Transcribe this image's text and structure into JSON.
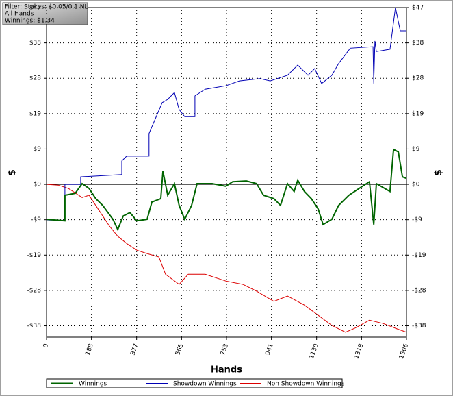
{
  "chart_data": {
    "type": "line",
    "filter_lines": [
      "Filter: Stakes: $0.05/0.1 NL",
      "All Hands",
      "Winnings: $1.34"
    ],
    "xlabel": "Hands",
    "ylabel": "$",
    "y2label": "$",
    "xlim": [
      0,
      1506
    ],
    "xticks": [
      0,
      188,
      377,
      565,
      753,
      941,
      1130,
      1318,
      1506
    ],
    "ylim": [
      -40.6,
      47
    ],
    "yticks": [
      {
        "value": -37.6,
        "label": "-$38"
      },
      {
        "value": -28.2,
        "label": "-$28"
      },
      {
        "value": -18.8,
        "label": "-$19"
      },
      {
        "value": -9.4,
        "label": "-$9"
      },
      {
        "value": 0,
        "label": "$0"
      },
      {
        "value": 9.4,
        "label": "$9"
      },
      {
        "value": 18.8,
        "label": "$19"
      },
      {
        "value": 28.2,
        "label": "$28"
      },
      {
        "value": 37.6,
        "label": "$38"
      },
      {
        "value": 47,
        "label": "$47"
      }
    ],
    "grid": true,
    "series": [
      {
        "name": "Winnings",
        "color": "#006400",
        "x": [
          0,
          77,
          77,
          120,
          149,
          178,
          206,
          235,
          278,
          298,
          321,
          349,
          378,
          421,
          441,
          478,
          487,
          507,
          535,
          555,
          578,
          607,
          630,
          693,
          750,
          779,
          836,
          879,
          908,
          951,
          979,
          1008,
          1036,
          1051,
          1079,
          1108,
          1137,
          1157,
          1194,
          1222,
          1265,
          1308,
          1351,
          1369,
          1380,
          1437,
          1452,
          1472,
          1489,
          1506
        ],
        "values": [
          -9.3,
          -9.7,
          -2.9,
          -2.4,
          0.2,
          -1.1,
          -3.8,
          -5.6,
          -9.3,
          -12.0,
          -8.4,
          -7.5,
          -9.7,
          -9.3,
          -4.7,
          -3.8,
          3.5,
          -2.9,
          0.2,
          -5.6,
          -9.3,
          -5.6,
          0.2,
          0.2,
          -0.5,
          0.7,
          0.9,
          0.2,
          -2.9,
          -3.8,
          -5.6,
          0.2,
          -1.9,
          1.1,
          -1.9,
          -3.8,
          -6.6,
          -10.7,
          -9.3,
          -5.6,
          -2.9,
          -1.1,
          0.7,
          -10.7,
          0.2,
          -1.9,
          9.3,
          8.6,
          2.0,
          1.6
        ]
      },
      {
        "name": "Showdown Winnings",
        "color": "#0000b4",
        "x": [
          0,
          77,
          77,
          143,
          143,
          315,
          315,
          335,
          429,
          429,
          484,
          507,
          535,
          555,
          578,
          621,
          621,
          664,
          750,
          807,
          893,
          936,
          1008,
          1051,
          1094,
          1122,
          1151,
          1194,
          1222,
          1271,
          1366,
          1369,
          1374,
          1380,
          1437,
          1460,
          1480,
          1506
        ],
        "values": [
          -9.7,
          -9.7,
          0,
          0,
          2.0,
          2.6,
          6.2,
          7.5,
          7.5,
          13.5,
          21.7,
          22.6,
          24.4,
          19.9,
          18.0,
          18.0,
          23.5,
          25.3,
          26.2,
          27.5,
          28.1,
          27.5,
          29.0,
          31.7,
          29.0,
          30.8,
          26.8,
          29.0,
          32.1,
          36.2,
          36.6,
          26.8,
          38.1,
          35.3,
          35.9,
          47.0,
          40.8,
          40.8
        ]
      },
      {
        "name": "Non Showdown Winnings",
        "color": "#dc0000",
        "x": [
          0,
          49,
          92,
          149,
          178,
          206,
          235,
          263,
          298,
          335,
          378,
          421,
          470,
          498,
          555,
          593,
          664,
          750,
          822,
          879,
          951,
          1008,
          1079,
          1137,
          1194,
          1251,
          1294,
          1351,
          1409,
          1466,
          1506
        ],
        "values": [
          0,
          -0.2,
          -1.1,
          -3.5,
          -2.9,
          -5.6,
          -8.4,
          -11.1,
          -13.8,
          -15.7,
          -17.5,
          -18.4,
          -19.3,
          -23.9,
          -26.6,
          -23.9,
          -23.9,
          -25.7,
          -26.6,
          -28.4,
          -31.1,
          -29.7,
          -32.1,
          -34.8,
          -37.5,
          -39.3,
          -38.1,
          -36.1,
          -37.0,
          -38.4,
          -39.3
        ]
      }
    ]
  }
}
